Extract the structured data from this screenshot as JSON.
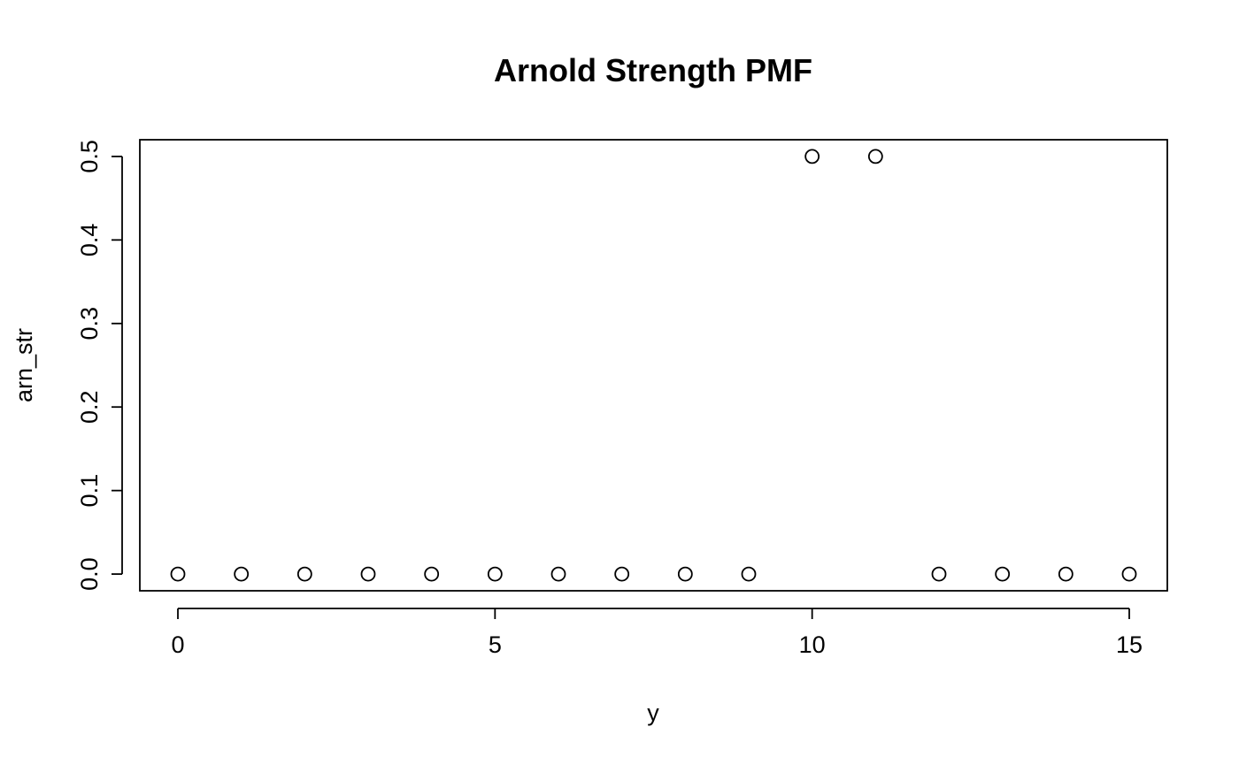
{
  "chart_data": {
    "type": "scatter",
    "title": "Arnold Strength PMF",
    "xlabel": "y",
    "ylabel": "arn_str",
    "x": [
      0,
      1,
      2,
      3,
      4,
      5,
      6,
      7,
      8,
      9,
      10,
      11,
      12,
      13,
      14,
      15
    ],
    "y": [
      0,
      0,
      0,
      0,
      0,
      0,
      0,
      0,
      0,
      0,
      0.5,
      0.5,
      0,
      0,
      0,
      0
    ],
    "xlim": [
      -0.6,
      15.6
    ],
    "ylim": [
      -0.02,
      0.52
    ],
    "x_ticks": [
      0,
      5,
      10,
      15
    ],
    "x_tick_labels": [
      "0",
      "5",
      "10",
      "15"
    ],
    "y_ticks": [
      0,
      0.1,
      0.2,
      0.3,
      0.4,
      0.5
    ],
    "y_tick_labels": [
      "0.0",
      "0.1",
      "0.2",
      "0.3",
      "0.4",
      "0.5"
    ],
    "grid": false,
    "legend": "none",
    "marker": "open-circle",
    "point_color": "#000000"
  }
}
